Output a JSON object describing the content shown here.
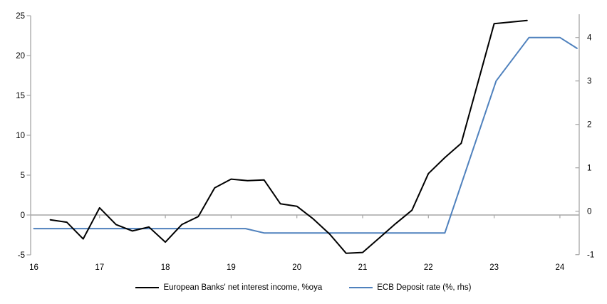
{
  "chart_data": {
    "type": "line",
    "title": "",
    "x_axis": {
      "ticks": [
        16,
        17,
        18,
        19,
        20,
        21,
        22,
        23,
        24
      ],
      "range": [
        16,
        24.3
      ]
    },
    "left_axis": {
      "ticks": [
        25,
        20,
        15,
        10,
        5,
        0,
        -5
      ],
      "range": [
        -5,
        25
      ]
    },
    "right_axis": {
      "ticks": [
        4,
        3,
        2,
        1,
        0,
        -1
      ],
      "range": [
        -1,
        4
      ]
    },
    "grid": false,
    "zero_line": true,
    "legend_position": "bottom",
    "axis_color": "#a6a6a6",
    "background_color": "#ffffff",
    "series": [
      {
        "name": "European Banks' net interest income, %oya",
        "axis": "left",
        "color": "#000000",
        "x_start": 16.25,
        "x_step": 0.25,
        "values": [
          -0.6,
          -0.9,
          -3.0,
          0.9,
          -1.2,
          -2.0,
          -1.5,
          -3.4,
          -1.2,
          -0.2,
          3.4,
          4.5,
          4.3,
          4.4,
          1.4,
          1.1,
          -0.5,
          -2.4,
          -4.8,
          -4.7,
          -2.9,
          -1.1,
          0.6,
          5.2,
          7.2,
          9.0,
          16.5,
          24.0,
          24.2,
          24.4
        ]
      },
      {
        "name": "ECB Deposit rate (%, rhs)",
        "axis": "right",
        "color": "#4f81bd",
        "points": [
          [
            16.0,
            -0.4
          ],
          [
            19.22,
            -0.4
          ],
          [
            19.5,
            -0.5
          ],
          [
            22.25,
            -0.5
          ],
          [
            23.03,
            3.0
          ],
          [
            23.53,
            4.0
          ],
          [
            24.0,
            4.0
          ],
          [
            24.26,
            3.75
          ]
        ]
      }
    ]
  }
}
